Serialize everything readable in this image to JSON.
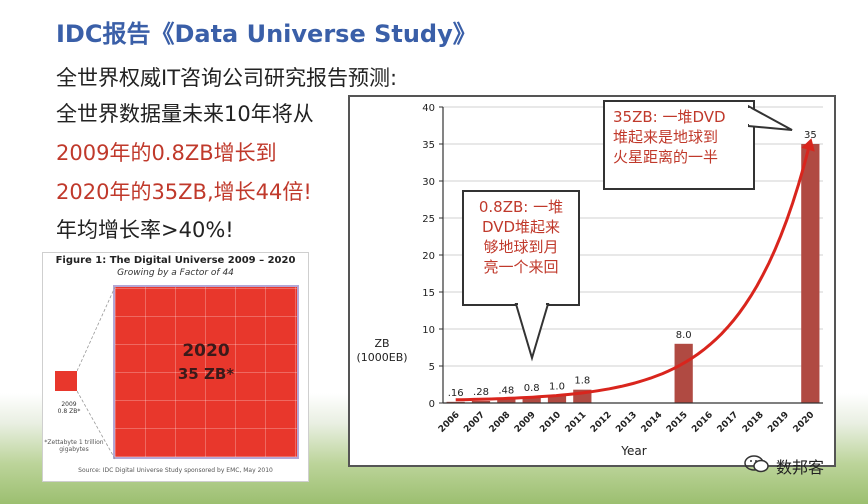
{
  "header": {
    "title": "IDC报告《Data Universe Study》",
    "subtitle": "全世界权威IT咨询公司研究报告预测:",
    "line1": "全世界数据量未来10年将从",
    "line2": "2009年的0.8ZB增长到",
    "line3": "2020年的35ZB,增长44倍!",
    "line4": "年均增长率>40%!"
  },
  "figure": {
    "title": "Figure 1:  The Digital Universe 2009 – 2020",
    "subtitle": "Growing by a Factor of 44",
    "big_year": "2020",
    "big_value": "35 ZB*",
    "small_year": "2009",
    "small_value": "0.8 ZB*",
    "small_note": "*Zettabyte 1 trillion gigabytes",
    "source": "Source: IDC Digital Universe Study sponsored by EMC, May 2010"
  },
  "callouts": {
    "c1_l1": "35ZB: 一堆DVD",
    "c1_l2": "堆起来是地球到",
    "c1_l3": "火星距离的一半",
    "c2_l1": "0.8ZB: 一堆",
    "c2_l2": "DVD堆起来",
    "c2_l3": "够地球到月",
    "c2_l4": "亮一个来回"
  },
  "watermark": {
    "text": "数邦客"
  },
  "colors": {
    "title_blue": "#3a5fa8",
    "highlight_red": "#c0392b",
    "bar": "#b04a42",
    "curve": "#d9251d"
  },
  "chart_data": {
    "type": "bar",
    "categories": [
      "2006",
      "2007",
      "2008",
      "2009",
      "2010",
      "2011",
      "2012",
      "2013",
      "2014",
      "2015",
      "2016",
      "2017",
      "2018",
      "2019",
      "2020"
    ],
    "values": [
      0.16,
      0.28,
      0.48,
      0.8,
      1.0,
      1.8,
      null,
      null,
      null,
      8.0,
      null,
      null,
      null,
      null,
      35
    ],
    "value_labels": [
      ".16",
      ".28",
      ".48",
      "0.8",
      "1.0",
      "1.8",
      "",
      "",
      "",
      "8.0",
      "",
      "",
      "",
      "",
      "35"
    ],
    "ylim": [
      0,
      40
    ],
    "yticks": [
      "0",
      "5",
      "10",
      "15",
      "20",
      "25",
      "30",
      "35",
      "40"
    ],
    "ylabel_line1": "ZB",
    "ylabel_line2": "(1000EB)",
    "xlabel": "Year",
    "grid": true,
    "trend": "exponential curve with arrow"
  }
}
